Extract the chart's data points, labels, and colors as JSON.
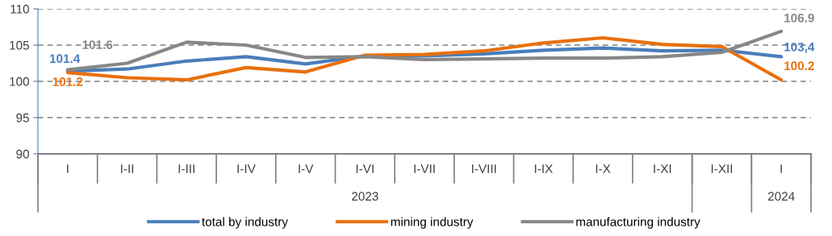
{
  "chart_data": {
    "type": "line",
    "categories": [
      "I",
      "I-II",
      "I-III",
      "I-IV",
      "I-V",
      "I-VI",
      "I-VII",
      "I-VIII",
      "I-IX",
      "I-X",
      "I-XI",
      "I-XII",
      "I"
    ],
    "series": [
      {
        "name": "total by industry",
        "color": "#4a7ebb",
        "values": [
          101.4,
          101.7,
          102.8,
          103.4,
          102.4,
          103.5,
          103.5,
          103.8,
          104.3,
          104.6,
          104.2,
          104.3,
          103.4
        ],
        "value_labels": [
          "101.4",
          null,
          null,
          null,
          null,
          null,
          null,
          null,
          null,
          null,
          null,
          null,
          "103,4"
        ]
      },
      {
        "name": "mining industry",
        "color": "#e8700c",
        "values": [
          101.2,
          100.5,
          100.2,
          101.9,
          101.3,
          103.6,
          103.7,
          104.2,
          105.3,
          106.0,
          105.1,
          104.8,
          100.2
        ],
        "value_labels": [
          "101.2",
          null,
          null,
          null,
          null,
          null,
          null,
          null,
          null,
          null,
          null,
          null,
          "100.2"
        ]
      },
      {
        "name": "manufacturing industry",
        "color": "#878787",
        "values": [
          101.6,
          102.5,
          105.4,
          105.0,
          103.3,
          103.4,
          103.0,
          103.1,
          103.2,
          103.2,
          103.4,
          104.0,
          106.9
        ],
        "value_labels": [
          "101.6",
          null,
          null,
          null,
          null,
          null,
          null,
          null,
          null,
          null,
          null,
          null,
          "106.9"
        ]
      }
    ],
    "ylim": [
      90,
      110
    ],
    "yticks": [
      90,
      95,
      100,
      105,
      110
    ],
    "grid": "y",
    "line_style": "solid",
    "legend": "bottom",
    "annotations": [
      "2023",
      "2024"
    ]
  }
}
